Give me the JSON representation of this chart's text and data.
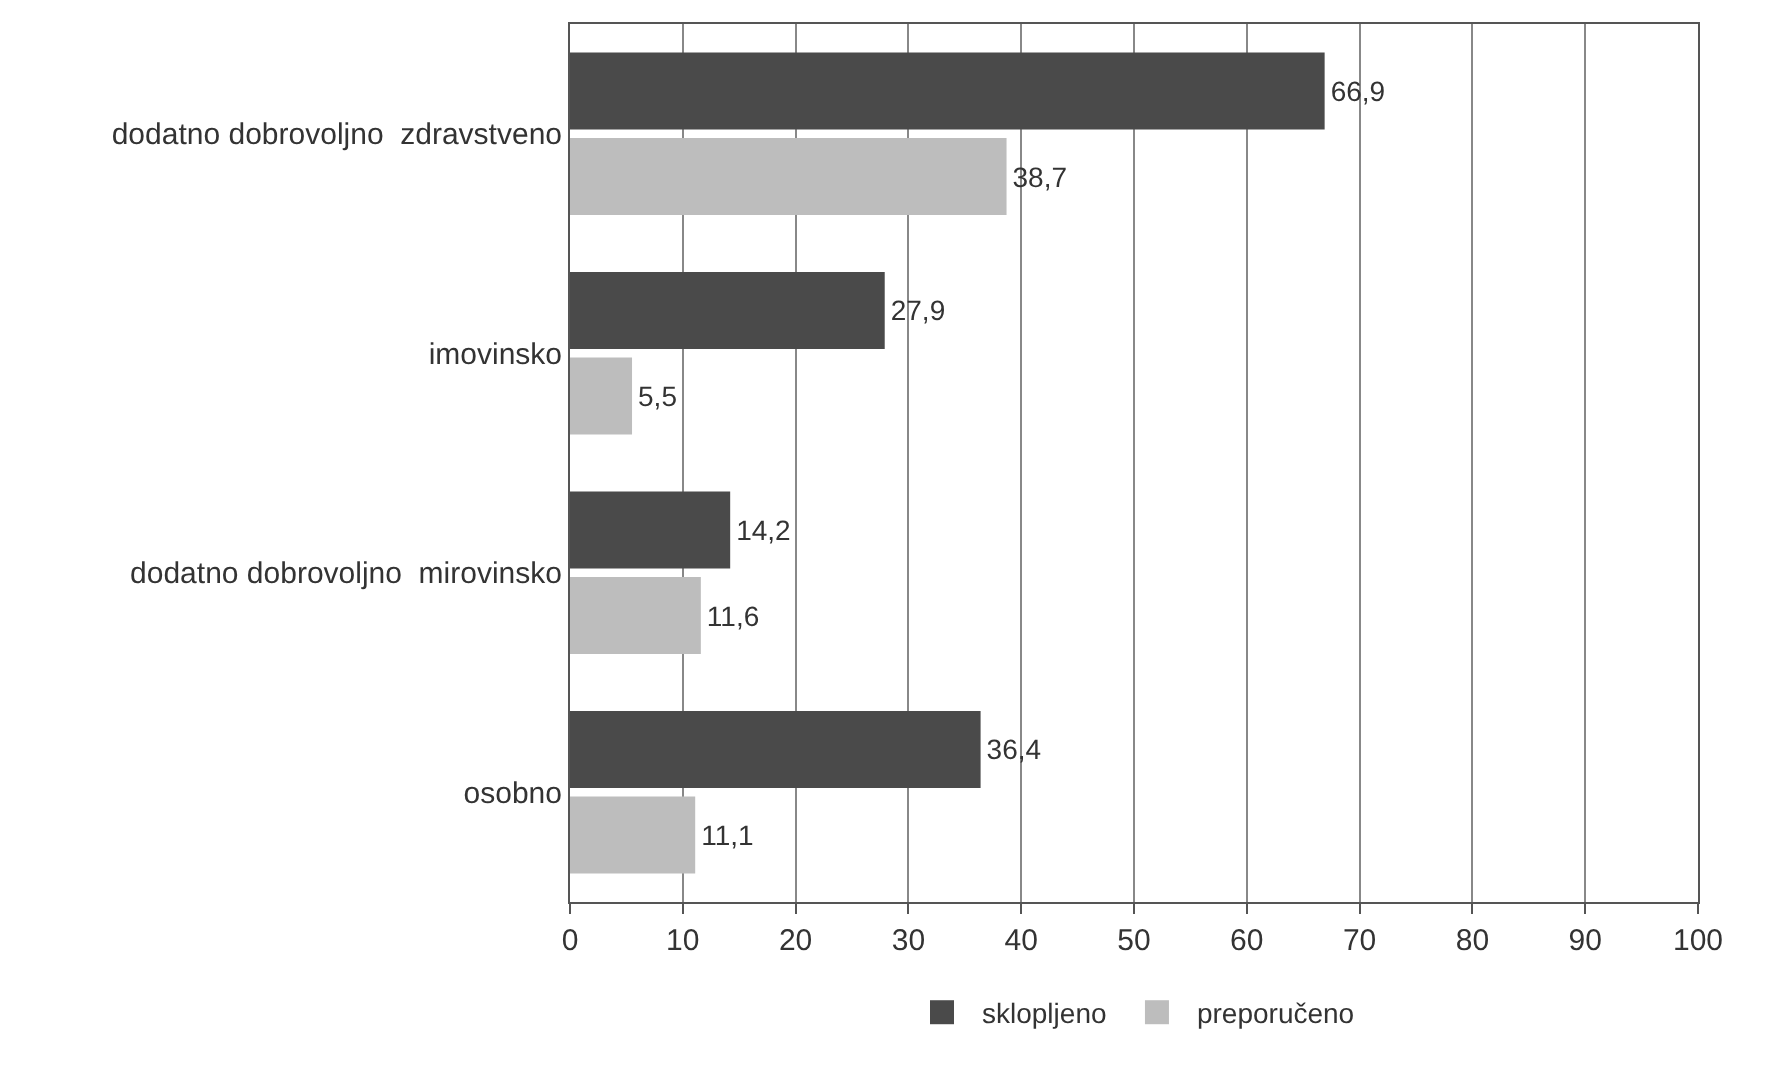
{
  "chart_data": {
    "type": "bar",
    "orientation": "horizontal",
    "categories": [
      "dodatno dobrovoljno  zdravstveno",
      "imovinsko",
      "dodatno dobrovoljno  mirovinsko",
      "osobno"
    ],
    "series": [
      {
        "name": "sklopljeno",
        "color": "#4a4a4a",
        "values": [
          66.9,
          27.9,
          14.2,
          36.4
        ],
        "value_labels": [
          "66,9",
          "27,9",
          "14,2",
          "36,4"
        ]
      },
      {
        "name": "preporučeno",
        "color": "#bdbdbd",
        "values": [
          38.7,
          5.5,
          11.6,
          11.1
        ],
        "value_labels": [
          "38,7",
          "5,5",
          "11,6",
          "11,1"
        ]
      }
    ],
    "xlim": [
      0,
      100
    ],
    "xticks": [
      0,
      10,
      20,
      30,
      40,
      50,
      60,
      70,
      80,
      90,
      100
    ],
    "grid": "x",
    "legend": "bottom"
  }
}
